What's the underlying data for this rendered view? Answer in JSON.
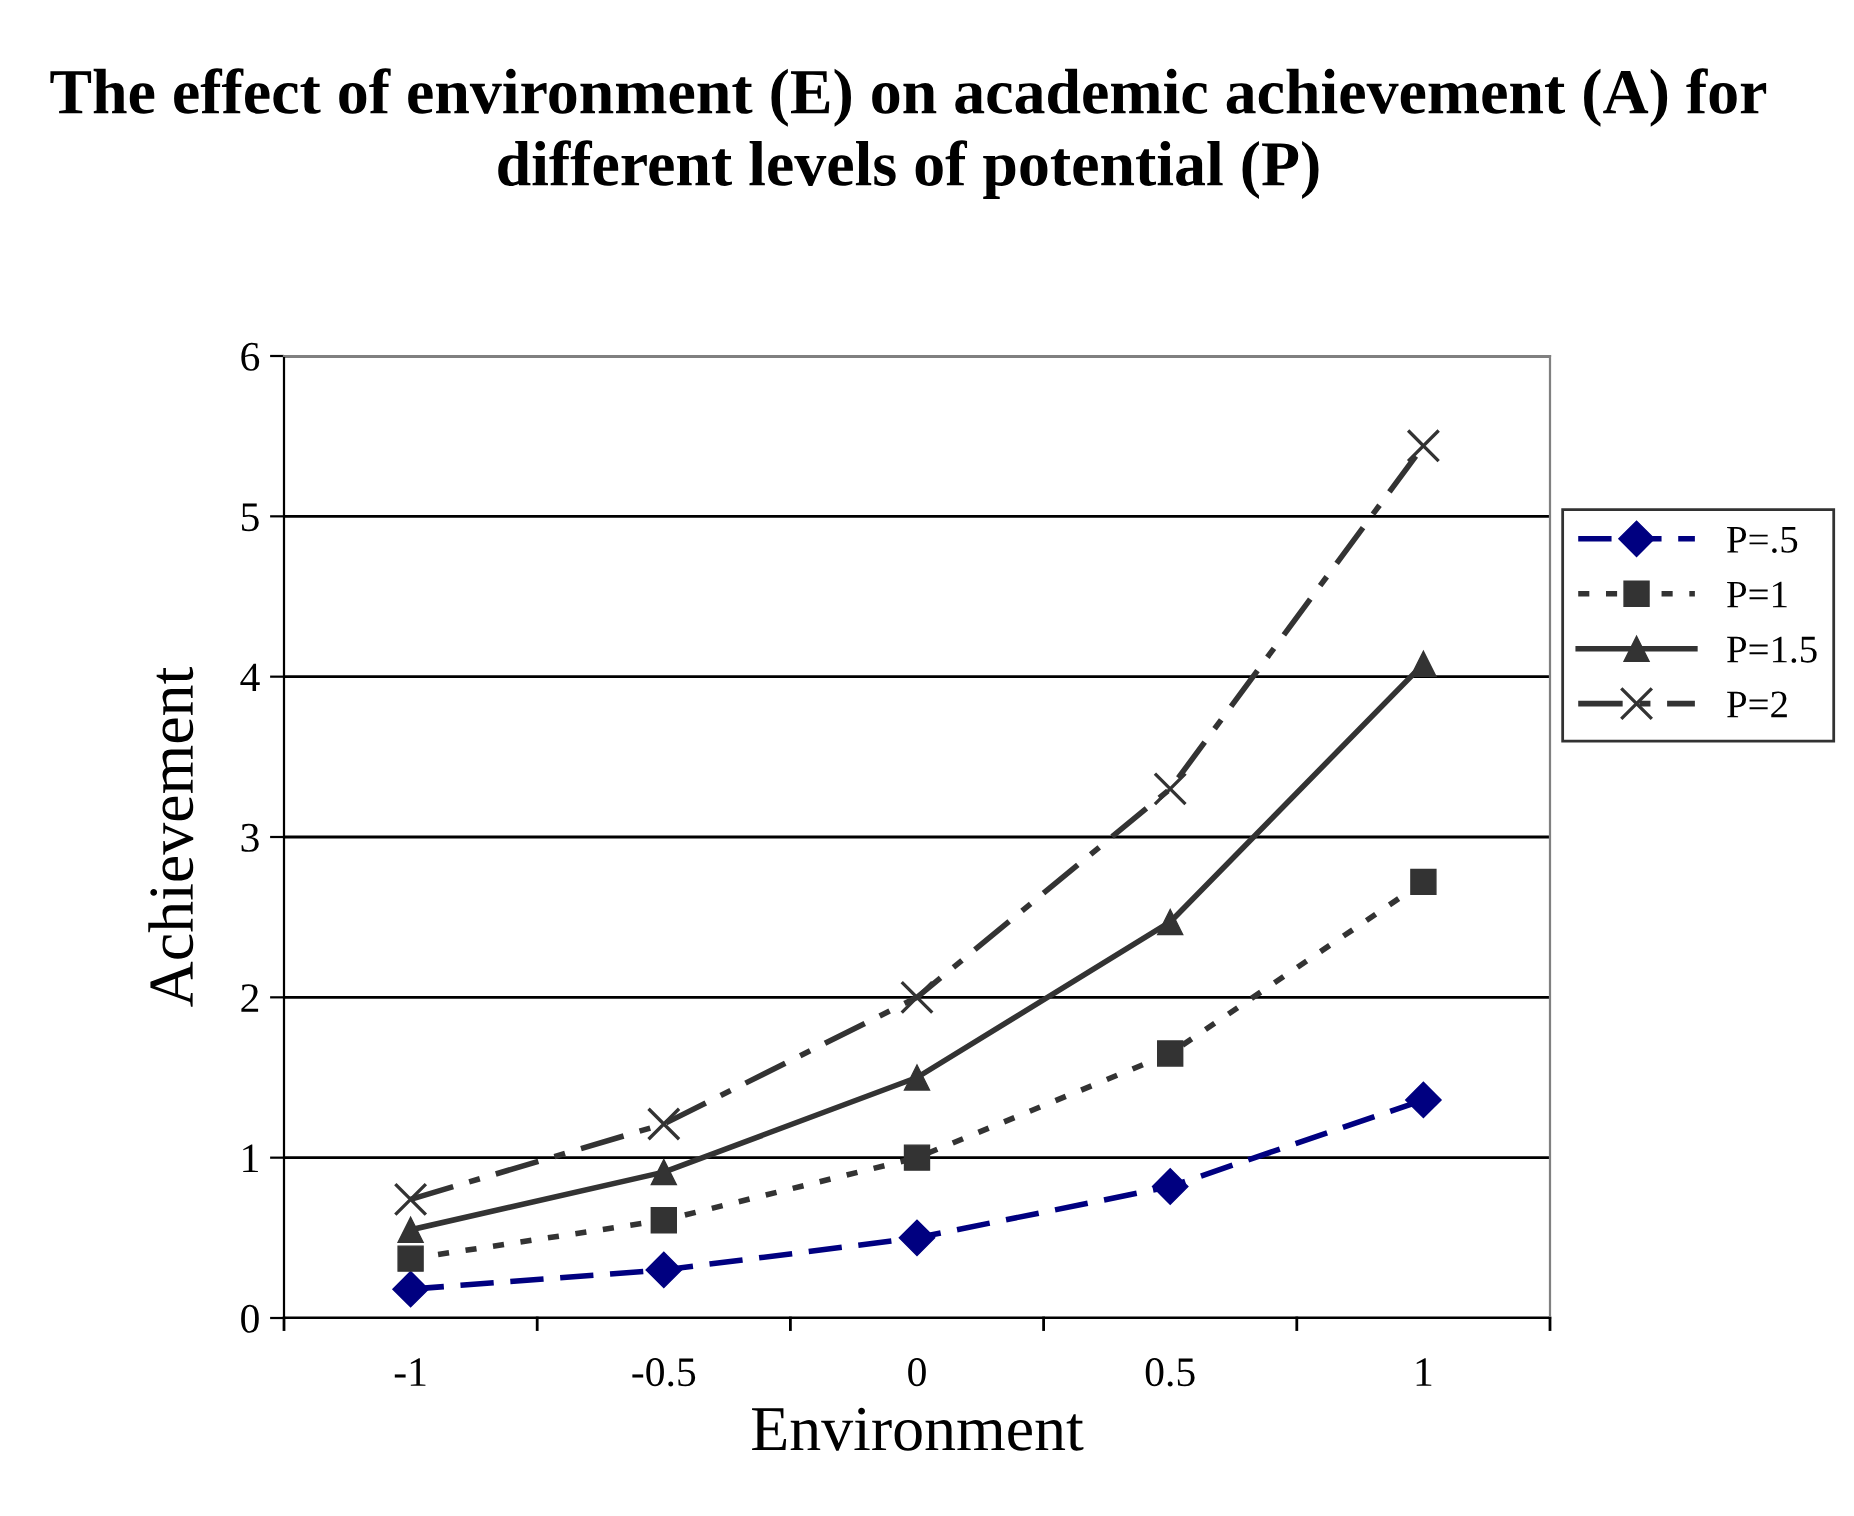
{
  "chart_data": {
    "type": "line",
    "title": "The effect of environment (E) on academic achievement (A) for different levels of potential (P)",
    "xlabel": "Environment",
    "ylabel": "Achievement",
    "categories": [
      "-1",
      "-0.5",
      "0",
      "0.5",
      "1"
    ],
    "ylim": [
      0,
      6
    ],
    "yticks": [
      0,
      1,
      2,
      3,
      4,
      5,
      6
    ],
    "grid": "y",
    "legend": "right",
    "series": [
      {
        "name": "P=.5",
        "color": "#000080",
        "marker": "diamond",
        "line_style": "dashed",
        "values": [
          0.18,
          0.3,
          0.5,
          0.82,
          1.36
        ]
      },
      {
        "name": "P=1",
        "color": "#333333",
        "marker": "square",
        "line_style": "dotted",
        "values": [
          0.37,
          0.61,
          1.0,
          1.65,
          2.72
        ]
      },
      {
        "name": "P=1.5",
        "color": "#333333",
        "marker": "triangle",
        "line_style": "solid",
        "values": [
          0.55,
          0.91,
          1.5,
          2.47,
          4.08
        ]
      },
      {
        "name": "P=2",
        "color": "#333333",
        "marker": "cross",
        "line_style": "dashdot",
        "values": [
          0.74,
          1.21,
          2.0,
          3.3,
          5.44
        ]
      }
    ]
  }
}
